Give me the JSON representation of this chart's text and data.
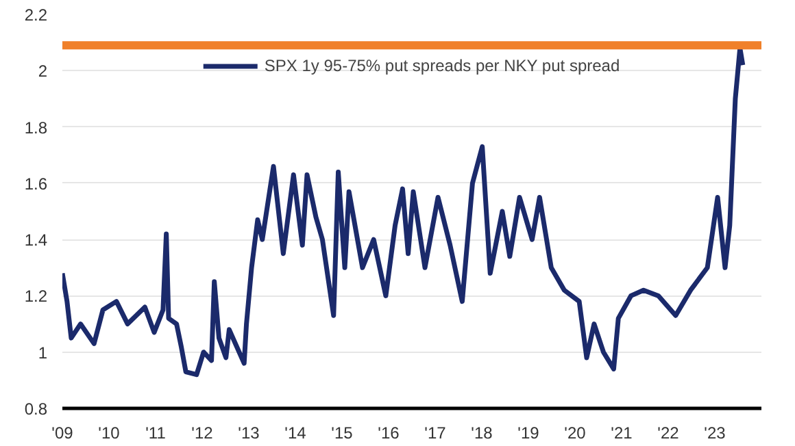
{
  "chart_data": {
    "type": "line",
    "x": [
      2009.0,
      2009.1,
      2009.19,
      2009.39,
      2009.68,
      2009.87,
      2010.16,
      2010.4,
      2010.77,
      2010.97,
      2011.16,
      2011.23,
      2011.28,
      2011.45,
      2011.55,
      2011.65,
      2011.88,
      2012.03,
      2012.2,
      2012.26,
      2012.36,
      2012.51,
      2012.58,
      2012.9,
      2012.95,
      2013.06,
      2013.19,
      2013.29,
      2013.53,
      2013.74,
      2013.96,
      2014.15,
      2014.25,
      2014.44,
      2014.58,
      2014.82,
      2014.92,
      2015.06,
      2015.15,
      2015.44,
      2015.68,
      2015.94,
      2016.14,
      2016.3,
      2016.42,
      2016.53,
      2016.78,
      2017.06,
      2017.32,
      2017.58,
      2017.8,
      2018.01,
      2018.18,
      2018.44,
      2018.6,
      2018.81,
      2019.08,
      2019.24,
      2019.49,
      2019.77,
      2020.09,
      2020.25,
      2020.41,
      2020.61,
      2020.83,
      2020.93,
      2021.2,
      2021.47,
      2021.79,
      2022.16,
      2022.48,
      2022.84,
      2023.06,
      2023.22,
      2023.32,
      2023.44,
      2023.54,
      2023.6
    ],
    "series": [
      {
        "name": "SPX 1y 95-75% put spreads per NKY put spread",
        "color": "#1b2a6b",
        "values": [
          1.28,
          1.18,
          1.05,
          1.1,
          1.03,
          1.15,
          1.18,
          1.1,
          1.16,
          1.07,
          1.15,
          1.42,
          1.12,
          1.1,
          1.02,
          0.93,
          0.92,
          1.0,
          0.97,
          1.25,
          1.05,
          0.98,
          1.08,
          0.96,
          1.1,
          1.3,
          1.47,
          1.4,
          1.66,
          1.35,
          1.63,
          1.38,
          1.63,
          1.48,
          1.4,
          1.13,
          1.64,
          1.3,
          1.57,
          1.3,
          1.4,
          1.2,
          1.45,
          1.58,
          1.35,
          1.57,
          1.3,
          1.55,
          1.38,
          1.18,
          1.6,
          1.73,
          1.28,
          1.5,
          1.34,
          1.55,
          1.4,
          1.55,
          1.3,
          1.22,
          1.18,
          0.98,
          1.1,
          1.0,
          0.94,
          1.12,
          1.2,
          1.22,
          1.2,
          1.13,
          1.22,
          1.3,
          1.55,
          1.3,
          1.45,
          1.9,
          2.08,
          2.02
        ]
      }
    ],
    "xlim": [
      2009,
      2024
    ],
    "xticks": [
      {
        "value": 2009,
        "label": "'09"
      },
      {
        "value": 2010,
        "label": "'10"
      },
      {
        "value": 2011,
        "label": "'11"
      },
      {
        "value": 2012,
        "label": "'12"
      },
      {
        "value": 2013,
        "label": "'13"
      },
      {
        "value": 2014,
        "label": "'14"
      },
      {
        "value": 2015,
        "label": "'15"
      },
      {
        "value": 2016,
        "label": "'16"
      },
      {
        "value": 2017,
        "label": "'17"
      },
      {
        "value": 2018,
        "label": "'18"
      },
      {
        "value": 2019,
        "label": "'19"
      },
      {
        "value": 2020,
        "label": "'20"
      },
      {
        "value": 2021,
        "label": "'21"
      },
      {
        "value": 2022,
        "label": "'22"
      },
      {
        "value": 2023,
        "label": "'23"
      }
    ],
    "ylim": [
      0.8,
      2.2
    ],
    "yticks": [
      0.8,
      1,
      1.2,
      1.4,
      1.6,
      1.8,
      2,
      2.2
    ],
    "ref_lines": [
      {
        "axis": "y",
        "value": 2.09,
        "color": "#f0802a"
      }
    ],
    "grid": "y",
    "legend": "top",
    "line_style": "solid",
    "marker": "none"
  }
}
